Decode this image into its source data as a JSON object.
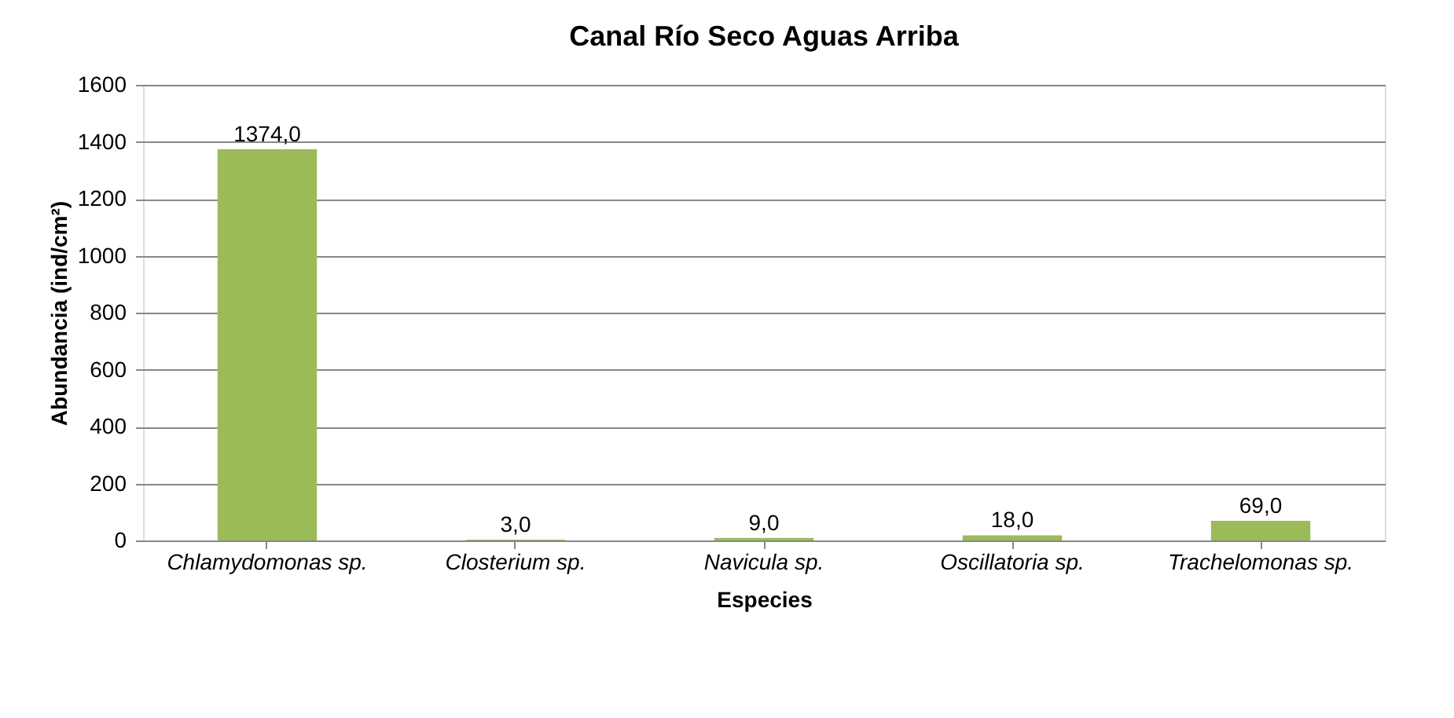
{
  "chart_data": {
    "type": "bar",
    "title": "Canal Río Seco Aguas Arriba",
    "xlabel": "Especies",
    "ylabel": "Abundancia (ind/cm²)",
    "categories": [
      "Chlamydomonas sp.",
      "Closterium sp.",
      "Navicula sp.",
      "Oscillatoria sp.",
      "Trachelomonas sp."
    ],
    "values": [
      1374,
      3,
      9,
      18,
      69
    ],
    "value_labels": [
      "1374,0",
      "3,0",
      "9,0",
      "18,0",
      "69,0"
    ],
    "color": "#9bbb59",
    "ylim": [
      0,
      1600
    ],
    "yticks": [
      0,
      200,
      400,
      600,
      800,
      1000,
      1200,
      1400,
      1600
    ],
    "grid": "y"
  }
}
